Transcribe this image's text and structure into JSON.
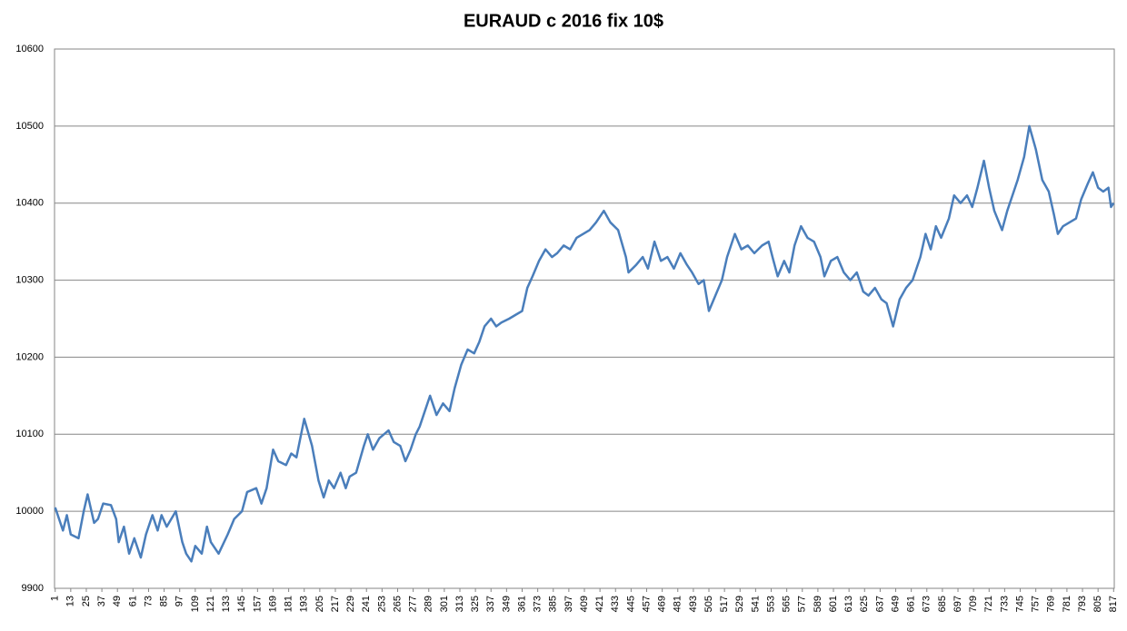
{
  "chart_data": {
    "type": "line",
    "title": "EURAUD c 2016 fix 10$",
    "x": [
      1,
      4,
      7,
      10,
      13,
      19,
      23,
      26,
      31,
      34,
      38,
      44,
      48,
      50,
      54,
      58,
      62,
      67,
      71,
      76,
      80,
      83,
      87,
      94,
      99,
      102,
      106,
      109,
      114,
      118,
      121,
      127,
      134,
      139,
      145,
      149,
      156,
      160,
      164,
      169,
      173,
      179,
      183,
      187,
      193,
      199,
      204,
      208,
      212,
      216,
      221,
      225,
      228,
      233,
      239,
      242,
      246,
      251,
      258,
      262,
      267,
      271,
      275,
      279,
      282,
      286,
      290,
      295,
      300,
      305,
      309,
      314,
      319,
      324,
      328,
      332,
      337,
      341,
      345,
      351,
      356,
      361,
      365,
      369,
      374,
      379,
      384,
      388,
      393,
      398,
      403,
      408,
      413,
      418,
      424,
      429,
      435,
      441,
      443,
      449,
      454,
      458,
      463,
      468,
      473,
      478,
      483,
      488,
      492,
      497,
      501,
      505,
      510,
      515,
      519,
      525,
      530,
      535,
      540,
      546,
      551,
      554,
      558,
      563,
      567,
      571,
      576,
      581,
      586,
      591,
      594,
      599,
      604,
      609,
      614,
      619,
      624,
      628,
      633,
      638,
      642,
      647,
      652,
      657,
      662,
      668,
      672,
      676,
      680,
      684,
      690,
      694,
      699,
      704,
      708,
      712,
      717,
      721,
      725,
      731,
      735,
      739,
      743,
      748,
      752,
      757,
      762,
      767,
      771,
      774,
      778,
      783,
      788,
      792,
      797,
      801,
      805,
      809,
      813,
      815,
      817
    ],
    "series": [
      {
        "color": "#4a7ebb",
        "values": [
          10005,
          9990,
          9975,
          9995,
          9970,
          9965,
          10000,
          10022,
          9985,
          9990,
          10010,
          10008,
          9990,
          9960,
          9980,
          9945,
          9965,
          9940,
          9970,
          9995,
          9975,
          9995,
          9980,
          10000,
          9960,
          9945,
          9935,
          9955,
          9945,
          9980,
          9960,
          9945,
          9970,
          9990,
          10000,
          10025,
          10030,
          10010,
          10030,
          10080,
          10065,
          10060,
          10075,
          10070,
          10120,
          10085,
          10040,
          10018,
          10040,
          10030,
          10050,
          10030,
          10045,
          10050,
          10085,
          10100,
          10080,
          10095,
          10105,
          10090,
          10085,
          10065,
          10080,
          10100,
          10110,
          10130,
          10150,
          10125,
          10140,
          10130,
          10160,
          10190,
          10210,
          10205,
          10220,
          10240,
          10250,
          10240,
          10245,
          10250,
          10255,
          10260,
          10290,
          10305,
          10325,
          10340,
          10330,
          10335,
          10345,
          10340,
          10355,
          10360,
          10365,
          10375,
          10390,
          10375,
          10365,
          10330,
          10310,
          10320,
          10330,
          10315,
          10350,
          10325,
          10330,
          10315,
          10335,
          10320,
          10310,
          10295,
          10300,
          10260,
          10280,
          10300,
          10330,
          10360,
          10340,
          10345,
          10335,
          10345,
          10350,
          10330,
          10305,
          10325,
          10310,
          10345,
          10370,
          10355,
          10350,
          10330,
          10305,
          10325,
          10330,
          10310,
          10300,
          10310,
          10285,
          10280,
          10290,
          10275,
          10270,
          10240,
          10275,
          10290,
          10300,
          10330,
          10360,
          10340,
          10370,
          10355,
          10380,
          10410,
          10400,
          10410,
          10395,
          10420,
          10455,
          10420,
          10390,
          10365,
          10390,
          10410,
          10430,
          10460,
          10500,
          10470,
          10430,
          10415,
          10385,
          10360,
          10370,
          10375,
          10380,
          10405,
          10425,
          10440,
          10420,
          10415,
          10420,
          10395,
          10400
        ]
      }
    ],
    "xlim": [
      0.5,
      817.5
    ],
    "xticks": [
      1,
      13,
      25,
      37,
      49,
      61,
      73,
      85,
      97,
      109,
      121,
      133,
      145,
      157,
      169,
      181,
      193,
      205,
      217,
      229,
      241,
      253,
      265,
      277,
      289,
      301,
      313,
      325,
      337,
      349,
      361,
      373,
      385,
      397,
      409,
      421,
      433,
      445,
      457,
      469,
      481,
      493,
      505,
      517,
      529,
      541,
      553,
      565,
      577,
      589,
      601,
      613,
      625,
      637,
      649,
      661,
      673,
      685,
      697,
      709,
      721,
      733,
      745,
      757,
      769,
      781,
      793,
      805,
      817
    ],
    "ylim": [
      9900,
      10600
    ],
    "yticks": [
      9900,
      10000,
      10100,
      10200,
      10300,
      10400,
      10500,
      10600
    ],
    "grid": true
  }
}
